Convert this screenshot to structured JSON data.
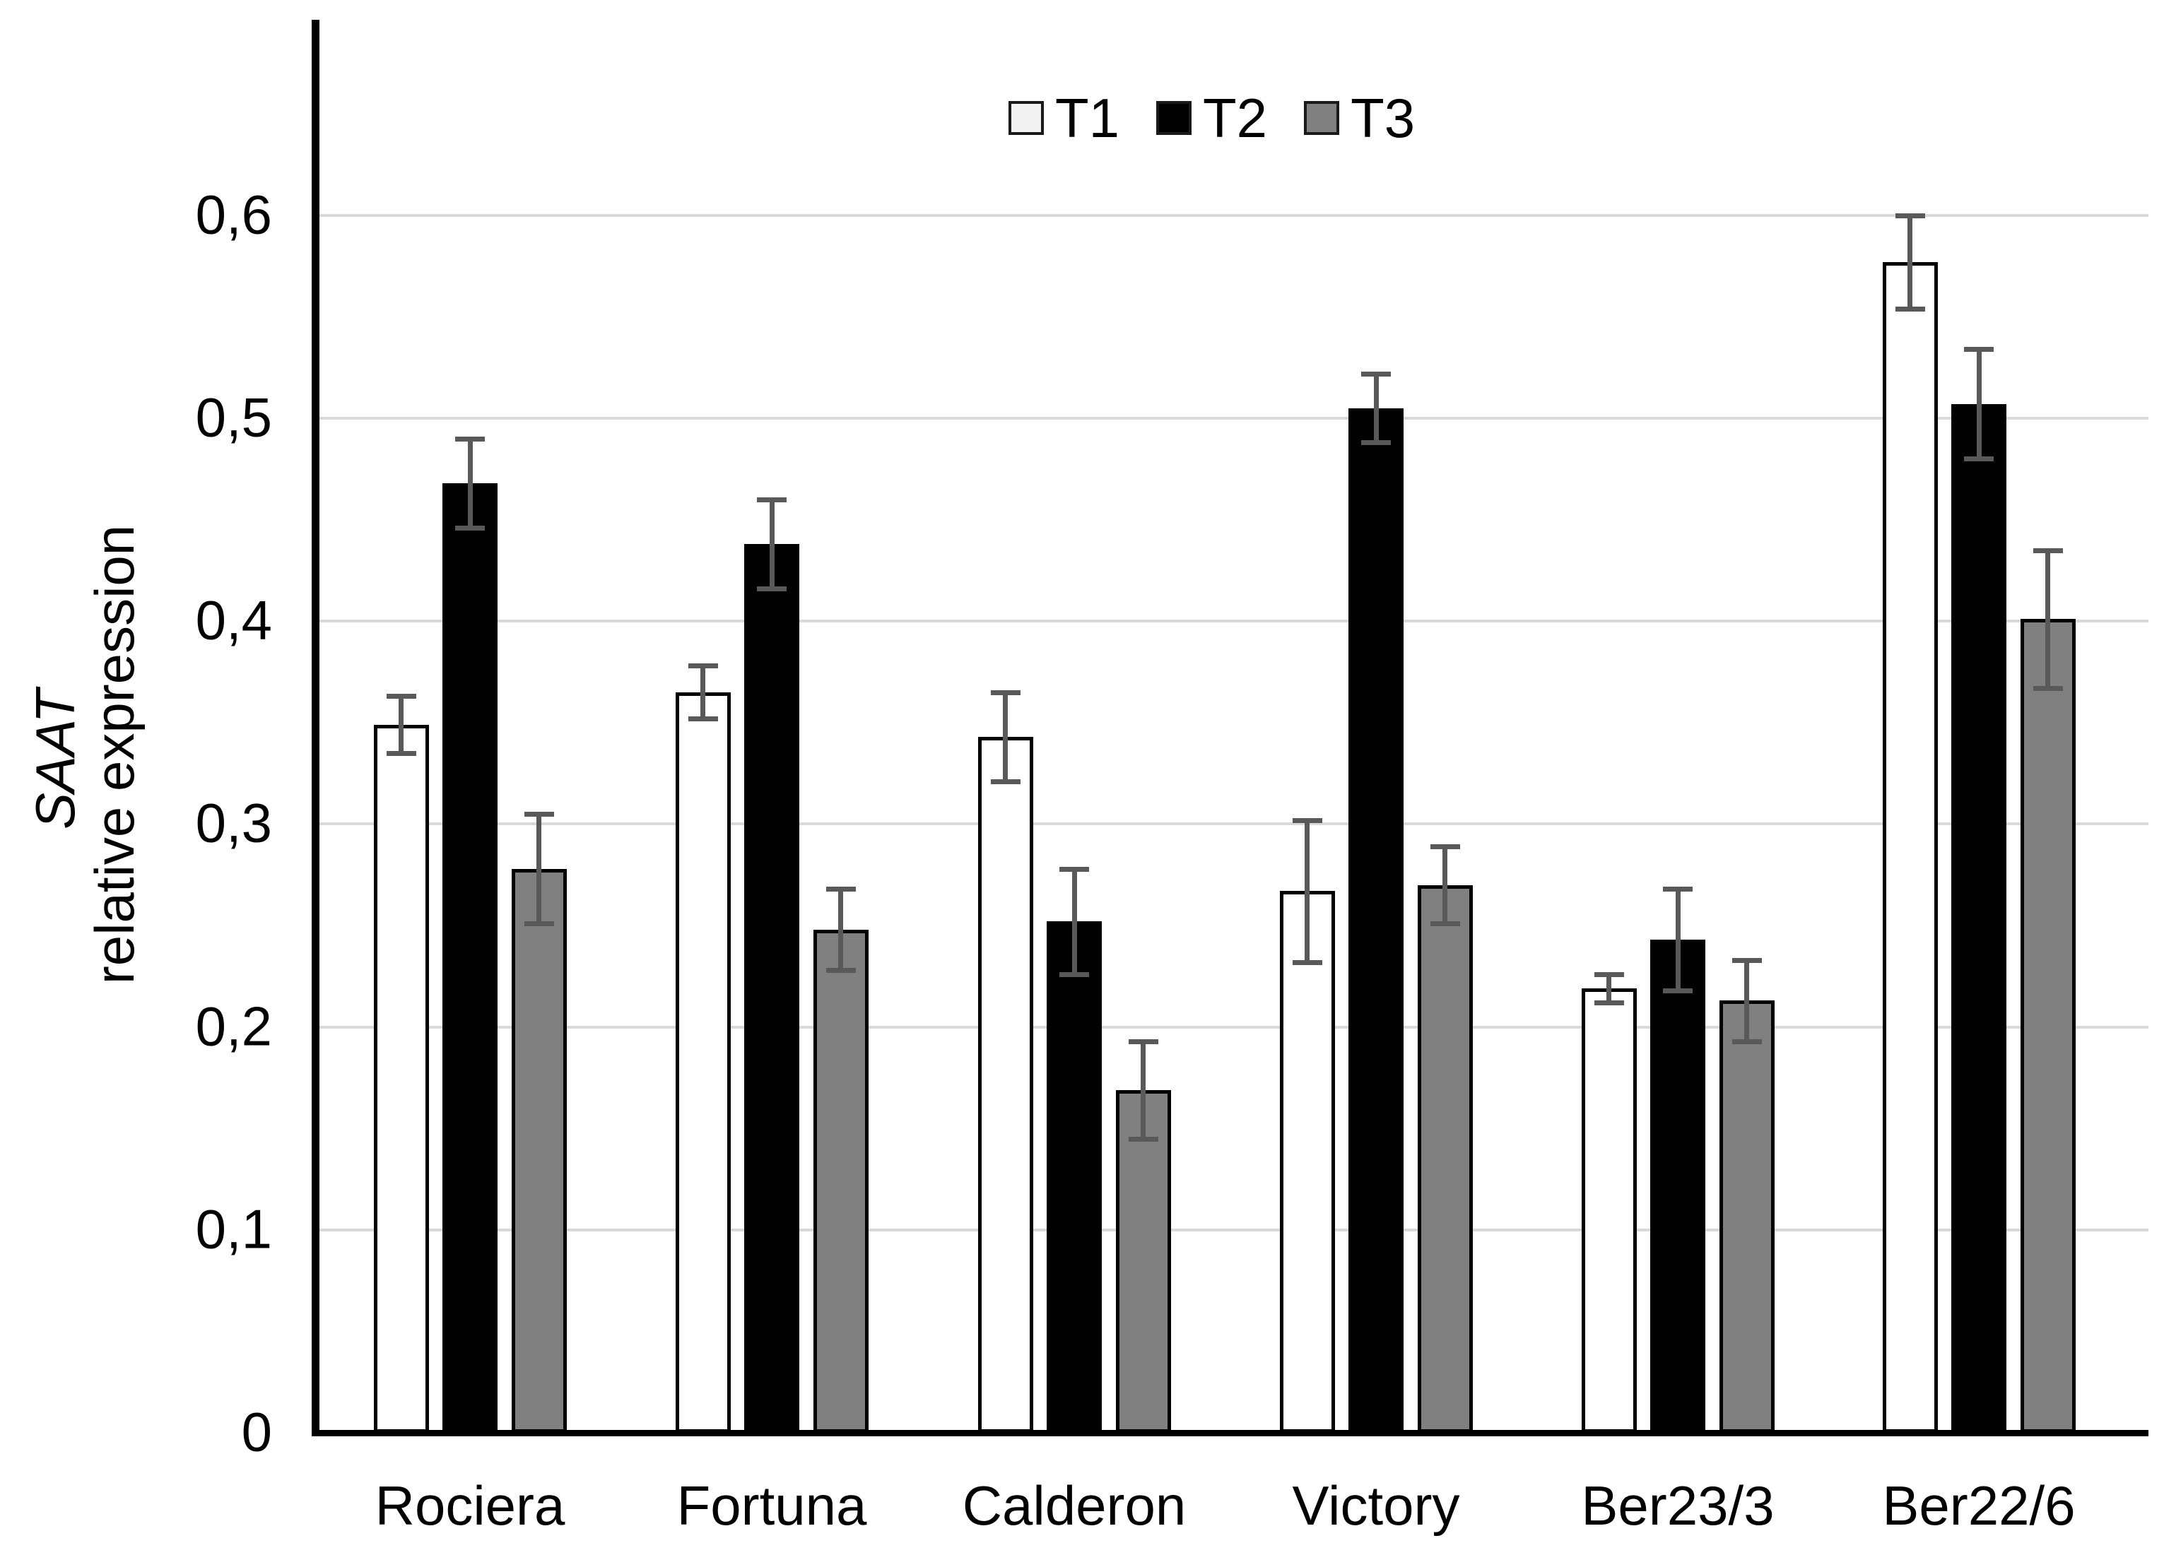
{
  "chart_data": {
    "type": "bar",
    "title": "",
    "ylabel_italic_part": "SAAT",
    "ylabel_regular_part": "relative expression",
    "categories": [
      "Rociera",
      "Fortuna",
      "Calderon",
      "Victory",
      "Ber23/3",
      "Ber22/6"
    ],
    "series": [
      {
        "name": "T1",
        "fill": "#ffffff",
        "legend_fill": "#f2f2f2",
        "values": [
          0.349,
          0.365,
          0.343,
          0.267,
          0.219,
          0.577
        ],
        "errors": [
          0.014,
          0.013,
          0.022,
          0.035,
          0.007,
          0.023
        ]
      },
      {
        "name": "T2",
        "fill": "#000000",
        "legend_fill": "#000000",
        "values": [
          0.468,
          0.438,
          0.252,
          0.505,
          0.243,
          0.507
        ],
        "errors": [
          0.022,
          0.022,
          0.026,
          0.017,
          0.025,
          0.027
        ]
      },
      {
        "name": "T3",
        "fill": "#808080",
        "legend_fill": "#808080",
        "values": [
          0.278,
          0.248,
          0.169,
          0.27,
          0.213,
          0.401
        ],
        "errors": [
          0.027,
          0.02,
          0.024,
          0.019,
          0.02,
          0.034
        ]
      }
    ],
    "y_ticks": [
      {
        "value": 0.0,
        "label": "0"
      },
      {
        "value": 0.1,
        "label": "0,1"
      },
      {
        "value": 0.2,
        "label": "0,2"
      },
      {
        "value": 0.3,
        "label": "0,3"
      },
      {
        "value": 0.4,
        "label": "0,4"
      },
      {
        "value": 0.5,
        "label": "0,5"
      },
      {
        "value": 0.6,
        "label": "0,6"
      }
    ],
    "ylim": [
      0,
      0.7
    ],
    "grid": true,
    "legend_position": "top-center"
  },
  "colors": {
    "background": "#ffffff",
    "bar_border": "#000000",
    "error_bar": "#595959",
    "gridline": "#d9d9d9",
    "axis": "#000000",
    "text": "#000000"
  }
}
